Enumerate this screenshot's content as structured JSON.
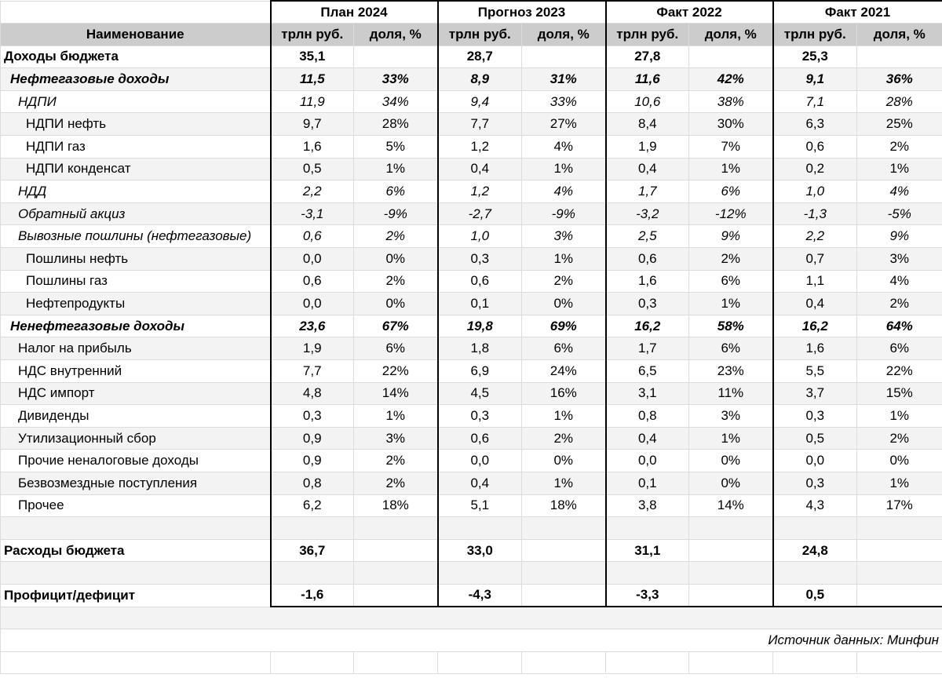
{
  "periods": [
    "План 2024",
    "Прогноз 2023",
    "Факт 2022",
    "Факт 2021"
  ],
  "header": {
    "name": "Наименование",
    "unit": "трлн руб.",
    "share": "доля, %"
  },
  "rows": [
    {
      "label": "Доходы бюджета",
      "style": "bold",
      "indent": 0,
      "values": [
        "35,1",
        "",
        "28,7",
        "",
        "27,8",
        "",
        "25,3",
        ""
      ]
    },
    {
      "label": "Нефтегазовые доходы",
      "style": "bi",
      "indent": 1,
      "values": [
        "11,5",
        "33%",
        "8,9",
        "31%",
        "11,6",
        "42%",
        "9,1",
        "36%"
      ]
    },
    {
      "label": "НДПИ",
      "style": "it",
      "indent": 2,
      "values": [
        "11,9",
        "34%",
        "9,4",
        "33%",
        "10,6",
        "38%",
        "7,1",
        "28%"
      ]
    },
    {
      "label": "НДПИ нефть",
      "style": "",
      "indent": 3,
      "values": [
        "9,7",
        "28%",
        "7,7",
        "27%",
        "8,4",
        "30%",
        "6,3",
        "25%"
      ]
    },
    {
      "label": "НДПИ газ",
      "style": "",
      "indent": 3,
      "values": [
        "1,6",
        "5%",
        "1,2",
        "4%",
        "1,9",
        "7%",
        "0,6",
        "2%"
      ]
    },
    {
      "label": "НДПИ конденсат",
      "style": "",
      "indent": 3,
      "values": [
        "0,5",
        "1%",
        "0,4",
        "1%",
        "0,4",
        "1%",
        "0,2",
        "1%"
      ]
    },
    {
      "label": "НДД",
      "style": "it",
      "indent": 2,
      "values": [
        "2,2",
        "6%",
        "1,2",
        "4%",
        "1,7",
        "6%",
        "1,0",
        "4%"
      ]
    },
    {
      "label": "Обратный акциз",
      "style": "it",
      "indent": 2,
      "values": [
        "-3,1",
        "-9%",
        "-2,7",
        "-9%",
        "-3,2",
        "-12%",
        "-1,3",
        "-5%"
      ]
    },
    {
      "label": "Вывозные пошлины (нефтегазовые)",
      "style": "it",
      "indent": 2,
      "values": [
        "0,6",
        "2%",
        "1,0",
        "3%",
        "2,5",
        "9%",
        "2,2",
        "9%"
      ]
    },
    {
      "label": "Пошлины нефть",
      "style": "",
      "indent": 3,
      "values": [
        "0,0",
        "0%",
        "0,3",
        "1%",
        "0,6",
        "2%",
        "0,7",
        "3%"
      ]
    },
    {
      "label": "Пошлины газ",
      "style": "",
      "indent": 3,
      "values": [
        "0,6",
        "2%",
        "0,6",
        "2%",
        "1,6",
        "6%",
        "1,1",
        "4%"
      ]
    },
    {
      "label": "Нефтепродукты",
      "style": "",
      "indent": 3,
      "values": [
        "0,0",
        "0%",
        "0,1",
        "0%",
        "0,3",
        "1%",
        "0,4",
        "2%"
      ]
    },
    {
      "label": "Ненефтегазовые доходы",
      "style": "bi",
      "indent": 1,
      "values": [
        "23,6",
        "67%",
        "19,8",
        "69%",
        "16,2",
        "58%",
        "16,2",
        "64%"
      ]
    },
    {
      "label": "Налог на прибыль",
      "style": "",
      "indent": 2,
      "values": [
        "1,9",
        "6%",
        "1,8",
        "6%",
        "1,7",
        "6%",
        "1,6",
        "6%"
      ]
    },
    {
      "label": "НДС внутренний",
      "style": "",
      "indent": 2,
      "values": [
        "7,7",
        "22%",
        "6,9",
        "24%",
        "6,5",
        "23%",
        "5,5",
        "22%"
      ]
    },
    {
      "label": "НДС импорт",
      "style": "",
      "indent": 2,
      "values": [
        "4,8",
        "14%",
        "4,5",
        "16%",
        "3,1",
        "11%",
        "3,7",
        "15%"
      ]
    },
    {
      "label": "Дивиденды",
      "style": "",
      "indent": 2,
      "values": [
        "0,3",
        "1%",
        "0,3",
        "1%",
        "0,8",
        "3%",
        "0,3",
        "1%"
      ]
    },
    {
      "label": "Утилизационный сбор",
      "style": "",
      "indent": 2,
      "values": [
        "0,9",
        "3%",
        "0,6",
        "2%",
        "0,4",
        "1%",
        "0,5",
        "2%"
      ]
    },
    {
      "label": "Прочие неналоговые доходы",
      "style": "",
      "indent": 2,
      "values": [
        "0,9",
        "2%",
        "0,0",
        "0%",
        "0,0",
        "0%",
        "0,0",
        "0%"
      ]
    },
    {
      "label": "Безвозмездные поступления",
      "style": "",
      "indent": 2,
      "values": [
        "0,8",
        "2%",
        "0,4",
        "1%",
        "0,1",
        "0%",
        "0,3",
        "1%"
      ]
    },
    {
      "label": "Прочее",
      "style": "",
      "indent": 2,
      "values": [
        "6,2",
        "18%",
        "5,1",
        "18%",
        "3,8",
        "14%",
        "4,3",
        "17%"
      ]
    },
    {
      "label": "",
      "style": "",
      "indent": 0,
      "values": [
        "",
        "",
        "",
        "",
        "",
        "",
        "",
        ""
      ]
    },
    {
      "label": "Расходы бюджета",
      "style": "bold",
      "indent": 0,
      "values": [
        "36,7",
        "",
        "33,0",
        "",
        "31,1",
        "",
        "24,8",
        ""
      ]
    },
    {
      "label": "",
      "style": "",
      "indent": 0,
      "values": [
        "",
        "",
        "",
        "",
        "",
        "",
        "",
        ""
      ]
    },
    {
      "label": "Профицит/дефицит",
      "style": "bold",
      "indent": 0,
      "values": [
        "-1,6",
        "",
        "-4,3",
        "",
        "-3,3",
        "",
        "0,5",
        ""
      ]
    }
  ],
  "source": "Источник данных: Минфин"
}
